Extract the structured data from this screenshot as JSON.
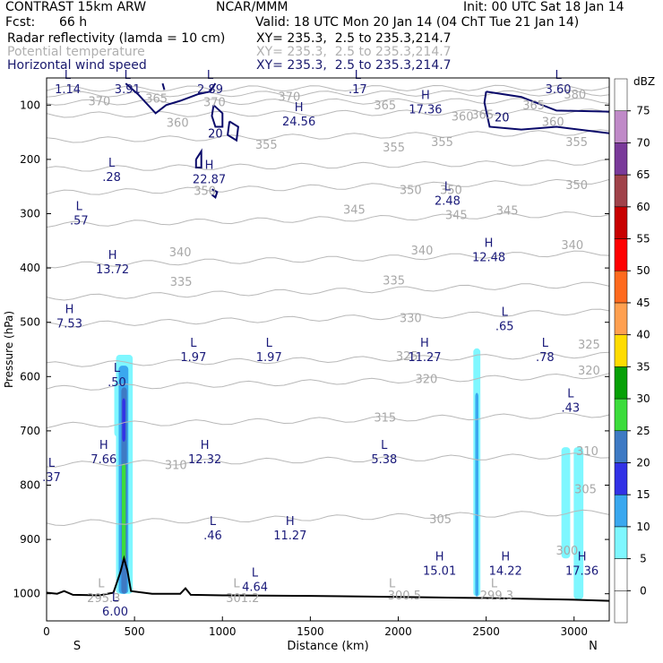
{
  "header": {
    "model": "CONTRAST 15km ARW",
    "center": "NCAR/MMM",
    "init": "Init: 00 UTC Sat 18 Jan 14",
    "fcst_label": "Fcst:",
    "fcst_value": "66 h",
    "valid": "Valid: 18 UTC Mon 20 Jan 14 (04 ChT Tue 21 Jan 14)"
  },
  "fields": [
    {
      "name": "Radar reflectivity (lamda = 10 cm)",
      "xy": "XY= 235.3,  2.5 to 235.3,214.7",
      "style": "black"
    },
    {
      "name": "Potential temperature",
      "xy": "XY= 235.3,  2.5 to 235.3,214.7",
      "style": "gray"
    },
    {
      "name": "Horizontal wind speed",
      "xy": "XY= 235.3,  2.5 to 235.3,214.7",
      "style": "navy"
    }
  ],
  "chart_data": {
    "type": "cross-section",
    "xlabel": "Distance (km)",
    "ylabel": "Pressure (hPa)",
    "xlim": [
      0,
      3200
    ],
    "ylim": [
      1050,
      50
    ],
    "x_ticks": [
      0,
      500,
      1000,
      1500,
      2000,
      2500,
      3000
    ],
    "y_ticks": [
      100,
      200,
      300,
      400,
      500,
      600,
      700,
      800,
      900,
      1000
    ],
    "end_labels": {
      "left": "S",
      "right": "N"
    },
    "colorbar": {
      "unit": "dBZ",
      "levels": [
        0,
        5,
        10,
        15,
        20,
        25,
        30,
        35,
        40,
        45,
        50,
        55,
        60,
        65,
        70,
        75
      ],
      "colors": [
        "#ffffff",
        "#ffffff",
        "#7ff7ff",
        "#3aa8ef",
        "#3232e6",
        "#3e7ac4",
        "#3cdc3c",
        "#07a007",
        "#ffdc00",
        "#ffa050",
        "#ff6a1e",
        "#ff0000",
        "#c80000",
        "#a0424a",
        "#7a3a9a",
        "#c08ac8",
        "#ffffff"
      ]
    },
    "theta_contours": [
      {
        "value": 305,
        "p_left": 870,
        "p_right": 850
      },
      {
        "value": 310,
        "p_left": 762,
        "p_right": 745
      },
      {
        "value": 315,
        "p_left": 690,
        "p_right": 670
      },
      {
        "value": 320,
        "p_left": 622,
        "p_right": 598
      },
      {
        "value": 325,
        "p_left": 578,
        "p_right": 560
      },
      {
        "value": 330,
        "p_left": 505,
        "p_right": 480
      },
      {
        "value": 335,
        "p_left": 455,
        "p_right": 430
      },
      {
        "value": 340,
        "p_left": 395,
        "p_right": 372
      },
      {
        "value": 345,
        "p_left": 320,
        "p_right": 300
      },
      {
        "value": 350,
        "p_left": 262,
        "p_right": 240
      },
      {
        "value": 355,
        "p_left": 218,
        "p_right": 205
      },
      {
        "value": 360,
        "p_left": 165,
        "p_right": 150
      },
      {
        "value": 365,
        "p_left": 118,
        "p_right": 112
      },
      {
        "value": 370,
        "p_left": 95,
        "p_right": 92
      },
      {
        "value": 375,
        "p_left": 80,
        "p_right": 78
      },
      {
        "value": 380,
        "p_left": 70,
        "p_right": 68
      }
    ],
    "theta_labels": [
      {
        "x": 300,
        "p": 100,
        "text": "370"
      },
      {
        "x": 625,
        "p": 95,
        "text": "365"
      },
      {
        "x": 955,
        "p": 102,
        "text": "370"
      },
      {
        "x": 1380,
        "p": 92,
        "text": "370"
      },
      {
        "x": 1925,
        "p": 108,
        "text": "365"
      },
      {
        "x": 2480,
        "p": 125,
        "text": "365"
      },
      {
        "x": 2365,
        "p": 128,
        "text": "360"
      },
      {
        "x": 2770,
        "p": 108,
        "text": "365"
      },
      {
        "x": 3005,
        "p": 88,
        "text": "380"
      },
      {
        "x": 2880,
        "p": 138,
        "text": "360"
      },
      {
        "x": 745,
        "p": 140,
        "text": "360"
      },
      {
        "x": 1250,
        "p": 180,
        "text": "355"
      },
      {
        "x": 1975,
        "p": 185,
        "text": "355"
      },
      {
        "x": 2250,
        "p": 175,
        "text": "355"
      },
      {
        "x": 3015,
        "p": 175,
        "text": "355"
      },
      {
        "x": 3015,
        "p": 255,
        "text": "350"
      },
      {
        "x": 900,
        "p": 265,
        "text": "350"
      },
      {
        "x": 2070,
        "p": 264,
        "text": "350"
      },
      {
        "x": 2300,
        "p": 264,
        "text": "350"
      },
      {
        "x": 2330,
        "p": 310,
        "text": "345"
      },
      {
        "x": 1750,
        "p": 300,
        "text": "345"
      },
      {
        "x": 2620,
        "p": 302,
        "text": "345"
      },
      {
        "x": 760,
        "p": 378,
        "text": "340"
      },
      {
        "x": 2135,
        "p": 375,
        "text": "340"
      },
      {
        "x": 2990,
        "p": 365,
        "text": "340"
      },
      {
        "x": 765,
        "p": 433,
        "text": "335"
      },
      {
        "x": 1975,
        "p": 430,
        "text": "335"
      },
      {
        "x": 2070,
        "p": 500,
        "text": "330"
      },
      {
        "x": 3085,
        "p": 548,
        "text": "325"
      },
      {
        "x": 2050,
        "p": 570,
        "text": "325"
      },
      {
        "x": 2160,
        "p": 612,
        "text": "320"
      },
      {
        "x": 3085,
        "p": 596,
        "text": "320"
      },
      {
        "x": 1925,
        "p": 683,
        "text": "315"
      },
      {
        "x": 735,
        "p": 770,
        "text": "310"
      },
      {
        "x": 3075,
        "p": 745,
        "text": "310"
      },
      {
        "x": 2240,
        "p": 870,
        "text": "305"
      },
      {
        "x": 3065,
        "p": 815,
        "text": "305"
      },
      {
        "x": 2960,
        "p": 928,
        "text": "300"
      },
      {
        "x": 325,
        "p": 1015,
        "text": "295.3"
      },
      {
        "x": 1115,
        "p": 1015,
        "text": "301.2"
      },
      {
        "x": 2035,
        "p": 1010,
        "text": "300.5"
      },
      {
        "x": 2560,
        "p": 1010,
        "text": "299.3"
      },
      {
        "x": 310,
        "p": 988,
        "text": "L"
      },
      {
        "x": 1080,
        "p": 988,
        "text": "L"
      },
      {
        "x": 1965,
        "p": 988,
        "text": "L"
      },
      {
        "x": 2545,
        "p": 988,
        "text": "L"
      }
    ],
    "wind_labels": [
      {
        "x": 120,
        "p": 58,
        "mark": "L",
        "value": "1.14"
      },
      {
        "x": 460,
        "p": 58,
        "mark": "L",
        "value": "3.91"
      },
      {
        "x": 930,
        "p": 58,
        "mark": "L",
        "value": "2.89"
      },
      {
        "x": 1770,
        "p": 58,
        "mark": "L",
        "value": ".17"
      },
      {
        "x": 2910,
        "p": 58,
        "mark": "L",
        "value": "3.60"
      },
      {
        "x": 2155,
        "p": 95,
        "mark": "H",
        "value": "17.36"
      },
      {
        "x": 1435,
        "p": 118,
        "mark": "H",
        "value": "24.56"
      },
      {
        "x": 925,
        "p": 224,
        "mark": "H",
        "value": "22.87"
      },
      {
        "x": 370,
        "p": 220,
        "mark": "L",
        "value": ".28"
      },
      {
        "x": 185,
        "p": 300,
        "mark": "L",
        "value": ".57"
      },
      {
        "x": 2280,
        "p": 264,
        "mark": "L",
        "value": "2.48"
      },
      {
        "x": 2515,
        "p": 368,
        "mark": "H",
        "value": "12.48"
      },
      {
        "x": 375,
        "p": 390,
        "mark": "H",
        "value": "13.72"
      },
      {
        "x": 130,
        "p": 490,
        "mark": "H",
        "value": "7.53"
      },
      {
        "x": 2605,
        "p": 495,
        "mark": "L",
        "value": ".65"
      },
      {
        "x": 835,
        "p": 552,
        "mark": "L",
        "value": "1.97"
      },
      {
        "x": 1265,
        "p": 552,
        "mark": "L",
        "value": "1.97"
      },
      {
        "x": 2150,
        "p": 552,
        "mark": "H",
        "value": "11.27"
      },
      {
        "x": 2835,
        "p": 552,
        "mark": "L",
        "value": ".78"
      },
      {
        "x": 400,
        "p": 598,
        "mark": "L",
        "value": ".50"
      },
      {
        "x": 2980,
        "p": 645,
        "mark": "L",
        "value": ".43"
      },
      {
        "x": 325,
        "p": 740,
        "mark": "H",
        "value": "7.66"
      },
      {
        "x": 900,
        "p": 740,
        "mark": "H",
        "value": "12.32"
      },
      {
        "x": 1920,
        "p": 740,
        "mark": "L",
        "value": "5.38"
      },
      {
        "x": 28,
        "p": 773,
        "mark": "L",
        "value": ".37"
      },
      {
        "x": 945,
        "p": 880,
        "mark": "L",
        "value": ".46"
      },
      {
        "x": 1385,
        "p": 880,
        "mark": "H",
        "value": "11.27"
      },
      {
        "x": 2235,
        "p": 945,
        "mark": "H",
        "value": "15.01"
      },
      {
        "x": 2610,
        "p": 945,
        "mark": "H",
        "value": "14.22"
      },
      {
        "x": 3045,
        "p": 945,
        "mark": "H",
        "value": "17.36"
      },
      {
        "x": 1185,
        "p": 975,
        "mark": "L",
        "value": "4.64"
      },
      {
        "x": 390,
        "p": 1020,
        "mark": "L",
        "value": "6.00"
      }
    ],
    "wind_contour_labels": [
      {
        "x": 960,
        "p": 160,
        "text": "20"
      },
      {
        "x": 2590,
        "p": 130,
        "text": "20"
      }
    ],
    "terrain_top": [
      [
        0,
        998
      ],
      [
        60,
        1000
      ],
      [
        100,
        995
      ],
      [
        150,
        1002
      ],
      [
        300,
        1003
      ],
      [
        380,
        998
      ],
      [
        420,
        960
      ],
      [
        440,
        935
      ],
      [
        460,
        958
      ],
      [
        480,
        995
      ],
      [
        600,
        1000
      ],
      [
        760,
        1000
      ],
      [
        790,
        990
      ],
      [
        820,
        1002
      ],
      [
        1000,
        1003
      ],
      [
        1500,
        1004
      ],
      [
        2000,
        1006
      ],
      [
        2500,
        1008
      ],
      [
        3000,
        1011
      ],
      [
        3200,
        1013
      ]
    ]
  }
}
